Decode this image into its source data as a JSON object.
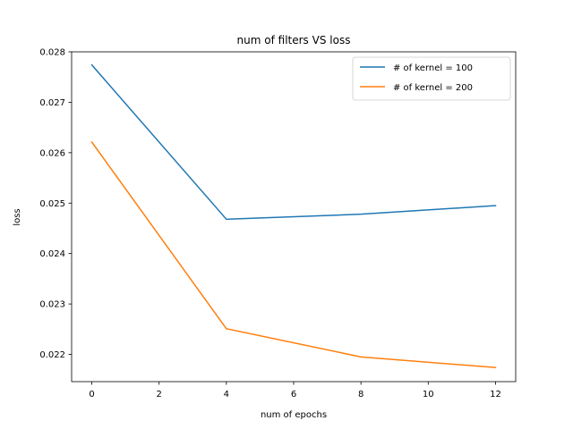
{
  "chart_data": {
    "type": "line",
    "title": "num of filters VS loss",
    "xlabel": "num of epochs",
    "ylabel": "loss",
    "xlim": [
      -0.6,
      12.6
    ],
    "ylim": [
      0.02146,
      0.028
    ],
    "xticks": [
      0,
      2,
      4,
      6,
      8,
      10,
      12
    ],
    "xtick_labels": [
      "0",
      "2",
      "4",
      "6",
      "8",
      "10",
      "12"
    ],
    "yticks": [
      0.022,
      0.023,
      0.024,
      0.025,
      0.026,
      0.027,
      0.028
    ],
    "ytick_labels": [
      "0.022",
      "0.023",
      "0.024",
      "0.025",
      "0.026",
      "0.027",
      "0.028"
    ],
    "grid": false,
    "legend_position": "upper right",
    "x": [
      0,
      4,
      8,
      12
    ],
    "series": [
      {
        "name": "# of kernel = 100",
        "color": "#1f77b4",
        "values": [
          0.02774,
          0.02468,
          0.02478,
          0.02495
        ]
      },
      {
        "name": "# of kernel = 200",
        "color": "#ff7f0e",
        "values": [
          0.02621,
          0.02251,
          0.02195,
          0.02174
        ]
      }
    ]
  }
}
